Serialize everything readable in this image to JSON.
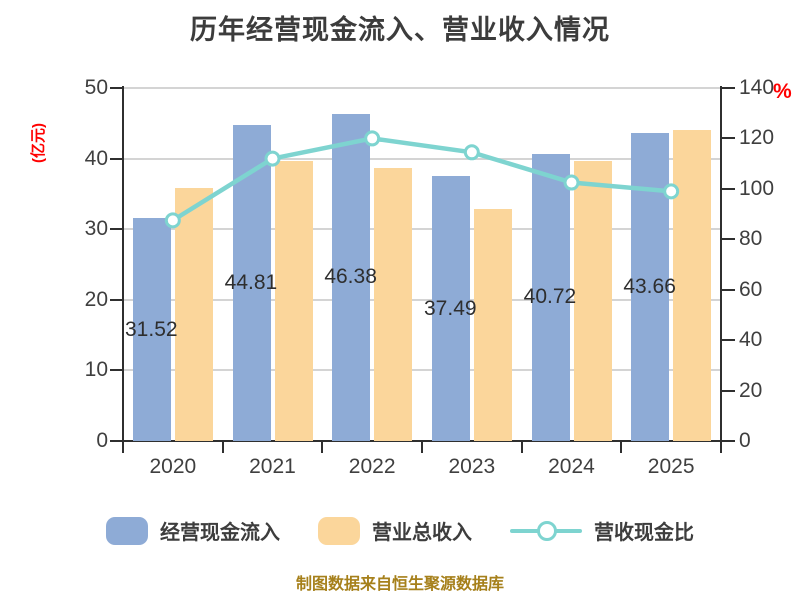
{
  "title": "历年经营现金流入、营业收入情况",
  "source_note": "制图数据来自恒生聚源数据库",
  "left_axis": {
    "unit": "(亿元)",
    "ticks": [
      0,
      10,
      20,
      30,
      40,
      50
    ],
    "max": 50,
    "unit_color": "#ff0000"
  },
  "right_axis": {
    "unit": "%",
    "ticks": [
      0,
      20,
      40,
      60,
      80,
      100,
      120,
      140
    ],
    "max": 140,
    "unit_color": "#ff0000"
  },
  "chart_data": {
    "type": "bar",
    "subtype": "grouped-bars-with-line",
    "categories": [
      "2020",
      "2021",
      "2022",
      "2023",
      "2024",
      "2025"
    ],
    "series": [
      {
        "name": "经营现金流入",
        "type": "bar",
        "axis": "left",
        "color": "#8eabd6",
        "values": [
          31.52,
          44.81,
          46.38,
          37.49,
          40.72,
          43.66
        ],
        "labels": [
          "31.52",
          "44.81",
          "46.38",
          "37.49",
          "40.72",
          "43.66"
        ]
      },
      {
        "name": "营业总收入",
        "type": "bar",
        "axis": "left",
        "color": "#fbd69b",
        "values": [
          35.8,
          39.7,
          38.6,
          32.8,
          39.7,
          44.0
        ]
      },
      {
        "name": "营收现金比",
        "type": "line",
        "axis": "right",
        "color": "#7ed4d0",
        "marker": "circle-white-fill",
        "values": [
          87.5,
          112,
          120,
          114.5,
          102.5,
          99
        ]
      }
    ],
    "title": "历年经营现金流入、营业收入情况",
    "xlabel": "",
    "ylabel_left": "(亿元)",
    "ylabel_right": "%",
    "left_ylim": [
      0,
      50
    ],
    "right_ylim": [
      0,
      140
    ],
    "grid": true,
    "gridline_values_left_axis": [
      10,
      20,
      30,
      40,
      50
    ],
    "legend_position": "bottom"
  },
  "legend": {
    "items": [
      {
        "label": "经营现金流入",
        "swatch": "bar",
        "color": "#8eabd6"
      },
      {
        "label": "营业总收入",
        "swatch": "bar",
        "color": "#fbd69b"
      },
      {
        "label": "营收现金比",
        "swatch": "line",
        "color": "#7ed4d0"
      }
    ]
  },
  "colors": {
    "background": "#ffffff",
    "bar_blue": "#8eabd6",
    "bar_yellow": "#fbd69b",
    "line_teal": "#7ed4d0",
    "marker_fill": "#ffffff",
    "grid": "#d4d4d4",
    "spine": "#2f2f2f",
    "text": "#3f3f3f",
    "value_label": "#2e2e2e",
    "axis_unit_red": "#ff0000",
    "source_gold": "#a6801b"
  }
}
